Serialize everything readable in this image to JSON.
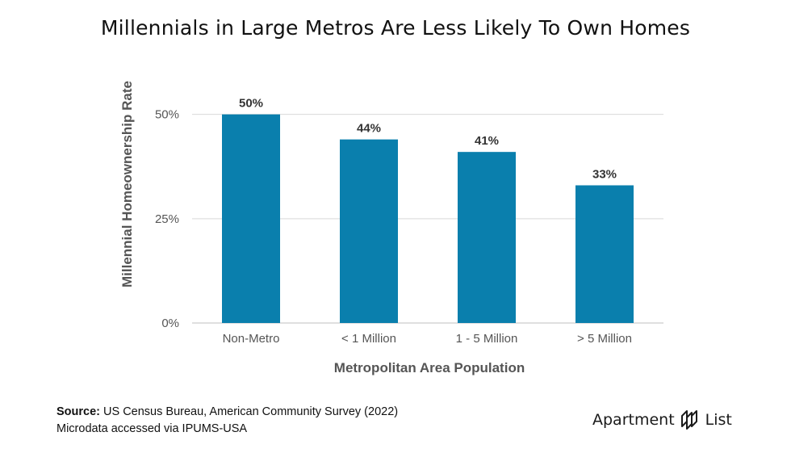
{
  "title": "Millennials in Large Metros Are Less Likely To Own Homes",
  "chart_data": {
    "type": "bar",
    "title": "Millennials in Large Metros Are Less Likely To Own Homes",
    "xlabel": "Metropolitan Area Population",
    "ylabel": "Millennial Homeownership Rate",
    "categories": [
      "Non-Metro",
      "< 1 Million",
      "1 - 5 Million",
      "> 5 Million"
    ],
    "values": [
      50,
      44,
      41,
      33
    ],
    "value_labels": [
      "50%",
      "44%",
      "41%",
      "33%"
    ],
    "ylim": [
      0,
      60
    ],
    "yticks": [
      0,
      25,
      50
    ],
    "ytick_labels": [
      "0%",
      "25%",
      "50%"
    ],
    "grid": true,
    "bar_color": "#0a7fad"
  },
  "source": {
    "label": "Source:",
    "line1": "US Census Bureau, American Community Survey (2022)",
    "line2": "Microdata accessed via IPUMS-USA"
  },
  "brand": {
    "left": "Apartment",
    "right": "List",
    "logo_icon": "apartment-list-logo-icon"
  }
}
